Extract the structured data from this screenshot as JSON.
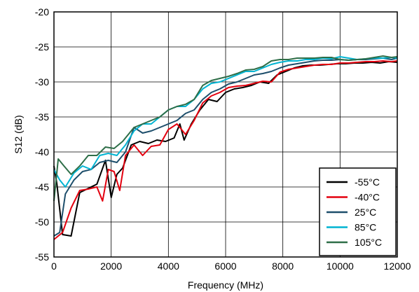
{
  "chart_data": {
    "type": "line",
    "title": "",
    "xlabel": "Frequency (MHz)",
    "ylabel": "S12 (dB)",
    "xlim": [
      0,
      12000
    ],
    "ylim": [
      -55,
      -20
    ],
    "xticks": [
      0,
      2000,
      4000,
      6000,
      8000,
      10000,
      12000
    ],
    "yticks": [
      -55,
      -50,
      -45,
      -40,
      -35,
      -30,
      -25,
      -20
    ],
    "x_tick_labels": [
      "0",
      "2000",
      "4000",
      "6000",
      "8000",
      "10000",
      "12000"
    ],
    "y_tick_labels": [
      "-55",
      "-50",
      "-45",
      "-40",
      "-35",
      "-30",
      "-25",
      "-20"
    ],
    "grid": true,
    "legend_position": "bottom-right",
    "series": [
      {
        "name": "-55°C",
        "color": "#000000",
        "points": [
          [
            0,
            -42
          ],
          [
            100,
            -44.5
          ],
          [
            300,
            -51.8
          ],
          [
            600,
            -52
          ],
          [
            900,
            -45.8
          ],
          [
            1200,
            -45.2
          ],
          [
            1500,
            -44.6
          ],
          [
            1800,
            -41.2
          ],
          [
            2000,
            -46.5
          ],
          [
            2200,
            -43.2
          ],
          [
            2400,
            -42.3
          ],
          [
            2700,
            -39
          ],
          [
            3000,
            -38.5
          ],
          [
            3300,
            -38.8
          ],
          [
            3600,
            -38.3
          ],
          [
            3900,
            -38.5
          ],
          [
            4200,
            -38
          ],
          [
            4400,
            -36
          ],
          [
            4550,
            -38.3
          ],
          [
            4800,
            -36
          ],
          [
            5100,
            -34
          ],
          [
            5400,
            -32.5
          ],
          [
            5700,
            -32.8
          ],
          [
            6000,
            -31.5
          ],
          [
            6300,
            -31
          ],
          [
            6600,
            -30.8
          ],
          [
            6900,
            -30.5
          ],
          [
            7200,
            -30
          ],
          [
            7500,
            -30.2
          ],
          [
            7800,
            -29
          ],
          [
            8100,
            -28.5
          ],
          [
            8400,
            -28
          ],
          [
            8700,
            -27.7
          ],
          [
            9000,
            -27.6
          ],
          [
            9300,
            -27.6
          ],
          [
            9600,
            -27.5
          ],
          [
            9900,
            -27.4
          ],
          [
            10200,
            -27.4
          ],
          [
            10500,
            -27.3
          ],
          [
            10800,
            -27.3
          ],
          [
            11100,
            -27.2
          ],
          [
            11400,
            -27.3
          ],
          [
            11700,
            -27.1
          ],
          [
            12000,
            -27.2
          ]
        ]
      },
      {
        "name": "-40°C",
        "color": "#e3000f",
        "points": [
          [
            0,
            -52.5
          ],
          [
            300,
            -51.5
          ],
          [
            600,
            -48
          ],
          [
            900,
            -45.5
          ],
          [
            1200,
            -45.3
          ],
          [
            1500,
            -45
          ],
          [
            1700,
            -47
          ],
          [
            1900,
            -42.5
          ],
          [
            2100,
            -42.8
          ],
          [
            2300,
            -45.5
          ],
          [
            2500,
            -40.5
          ],
          [
            2800,
            -39
          ],
          [
            3100,
            -40.5
          ],
          [
            3400,
            -39.2
          ],
          [
            3700,
            -39
          ],
          [
            4000,
            -36.8
          ],
          [
            4300,
            -36
          ],
          [
            4600,
            -37.5
          ],
          [
            4900,
            -35.5
          ],
          [
            5200,
            -33
          ],
          [
            5500,
            -32
          ],
          [
            5800,
            -31.5
          ],
          [
            6100,
            -30.8
          ],
          [
            6400,
            -30.6
          ],
          [
            6700,
            -30.5
          ],
          [
            7000,
            -30.2
          ],
          [
            7300,
            -29.9
          ],
          [
            7600,
            -30
          ],
          [
            7900,
            -28.6
          ],
          [
            8200,
            -28.2
          ],
          [
            8500,
            -28
          ],
          [
            8800,
            -27.8
          ],
          [
            9100,
            -27.6
          ],
          [
            9400,
            -27.5
          ],
          [
            9700,
            -27.5
          ],
          [
            10000,
            -27.3
          ],
          [
            10300,
            -27.3
          ],
          [
            10600,
            -27.2
          ],
          [
            10900,
            -27.1
          ],
          [
            11200,
            -27.1
          ],
          [
            11500,
            -27
          ],
          [
            11800,
            -27.1
          ],
          [
            12000,
            -27
          ]
        ]
      },
      {
        "name": "25°C",
        "color": "#1d4e6b",
        "points": [
          [
            0,
            -52
          ],
          [
            200,
            -51.5
          ],
          [
            400,
            -46
          ],
          [
            700,
            -44
          ],
          [
            1000,
            -42.8
          ],
          [
            1300,
            -42.5
          ],
          [
            1600,
            -41.5
          ],
          [
            1900,
            -41.2
          ],
          [
            2200,
            -41.5
          ],
          [
            2500,
            -40
          ],
          [
            2800,
            -36.5
          ],
          [
            3100,
            -37.3
          ],
          [
            3400,
            -37
          ],
          [
            3700,
            -36.5
          ],
          [
            4000,
            -36
          ],
          [
            4300,
            -35.5
          ],
          [
            4600,
            -34.5
          ],
          [
            4900,
            -34
          ],
          [
            5200,
            -32.5
          ],
          [
            5500,
            -31.5
          ],
          [
            5800,
            -31
          ],
          [
            6100,
            -30.3
          ],
          [
            6400,
            -30
          ],
          [
            6700,
            -29.5
          ],
          [
            7000,
            -29
          ],
          [
            7300,
            -28.8
          ],
          [
            7600,
            -28.5
          ],
          [
            7900,
            -28
          ],
          [
            8200,
            -27.6
          ],
          [
            8500,
            -27.4
          ],
          [
            8800,
            -27.2
          ],
          [
            9100,
            -27
          ],
          [
            9400,
            -26.9
          ],
          [
            9700,
            -26.9
          ],
          [
            10000,
            -26.8
          ],
          [
            10300,
            -26.9
          ],
          [
            10600,
            -26.8
          ],
          [
            10900,
            -26.8
          ],
          [
            11200,
            -26.7
          ],
          [
            11500,
            -26.6
          ],
          [
            11800,
            -26.8
          ],
          [
            12000,
            -26.6
          ]
        ]
      },
      {
        "name": "85°C",
        "color": "#00b4d2",
        "points": [
          [
            0,
            -42.5
          ],
          [
            200,
            -44
          ],
          [
            400,
            -45
          ],
          [
            700,
            -43
          ],
          [
            1000,
            -42
          ],
          [
            1300,
            -42.5
          ],
          [
            1600,
            -40.5
          ],
          [
            1900,
            -40.2
          ],
          [
            2200,
            -40.5
          ],
          [
            2500,
            -39
          ],
          [
            2800,
            -37
          ],
          [
            3100,
            -36
          ],
          [
            3400,
            -36
          ],
          [
            3700,
            -35
          ],
          [
            4000,
            -34
          ],
          [
            4300,
            -33.5
          ],
          [
            4600,
            -33.5
          ],
          [
            4900,
            -32.5
          ],
          [
            5200,
            -31
          ],
          [
            5500,
            -30.2
          ],
          [
            5800,
            -30
          ],
          [
            6100,
            -29.5
          ],
          [
            6400,
            -29
          ],
          [
            6700,
            -28.5
          ],
          [
            7000,
            -28.5
          ],
          [
            7300,
            -28
          ],
          [
            7600,
            -27.5
          ],
          [
            7900,
            -27.2
          ],
          [
            8200,
            -27
          ],
          [
            8500,
            -27
          ],
          [
            8800,
            -26.8
          ],
          [
            9100,
            -26.8
          ],
          [
            9400,
            -26.6
          ],
          [
            9700,
            -26.7
          ],
          [
            10000,
            -26.4
          ],
          [
            10300,
            -26.6
          ],
          [
            10600,
            -26.8
          ],
          [
            10900,
            -26.7
          ],
          [
            11200,
            -26.6
          ],
          [
            11500,
            -26.6
          ],
          [
            11800,
            -26.5
          ],
          [
            12000,
            -26.6
          ]
        ]
      },
      {
        "name": "105°C",
        "color": "#2e6e48",
        "points": [
          [
            0,
            -47
          ],
          [
            150,
            -41
          ],
          [
            350,
            -42
          ],
          [
            600,
            -43.2
          ],
          [
            900,
            -42
          ],
          [
            1200,
            -40.5
          ],
          [
            1500,
            -40.5
          ],
          [
            1800,
            -39.3
          ],
          [
            2100,
            -39.5
          ],
          [
            2400,
            -38.5
          ],
          [
            2800,
            -36.5
          ],
          [
            3100,
            -36
          ],
          [
            3400,
            -35.5
          ],
          [
            3700,
            -35
          ],
          [
            4000,
            -34
          ],
          [
            4300,
            -33.5
          ],
          [
            4600,
            -33.2
          ],
          [
            4900,
            -32.5
          ],
          [
            5200,
            -30.5
          ],
          [
            5500,
            -29.8
          ],
          [
            5800,
            -29.5
          ],
          [
            6100,
            -29.2
          ],
          [
            6400,
            -28.8
          ],
          [
            6700,
            -28.3
          ],
          [
            7000,
            -28.2
          ],
          [
            7300,
            -27.8
          ],
          [
            7600,
            -27
          ],
          [
            7900,
            -26.8
          ],
          [
            8200,
            -26.8
          ],
          [
            8500,
            -26.6
          ],
          [
            8800,
            -26.6
          ],
          [
            9100,
            -26.6
          ],
          [
            9400,
            -26.5
          ],
          [
            9700,
            -26.5
          ],
          [
            10000,
            -26.8
          ],
          [
            10300,
            -26.9
          ],
          [
            10600,
            -26.8
          ],
          [
            10900,
            -26.7
          ],
          [
            11200,
            -26.5
          ],
          [
            11500,
            -26.3
          ],
          [
            11800,
            -26.5
          ],
          [
            12000,
            -26.4
          ]
        ]
      }
    ]
  }
}
